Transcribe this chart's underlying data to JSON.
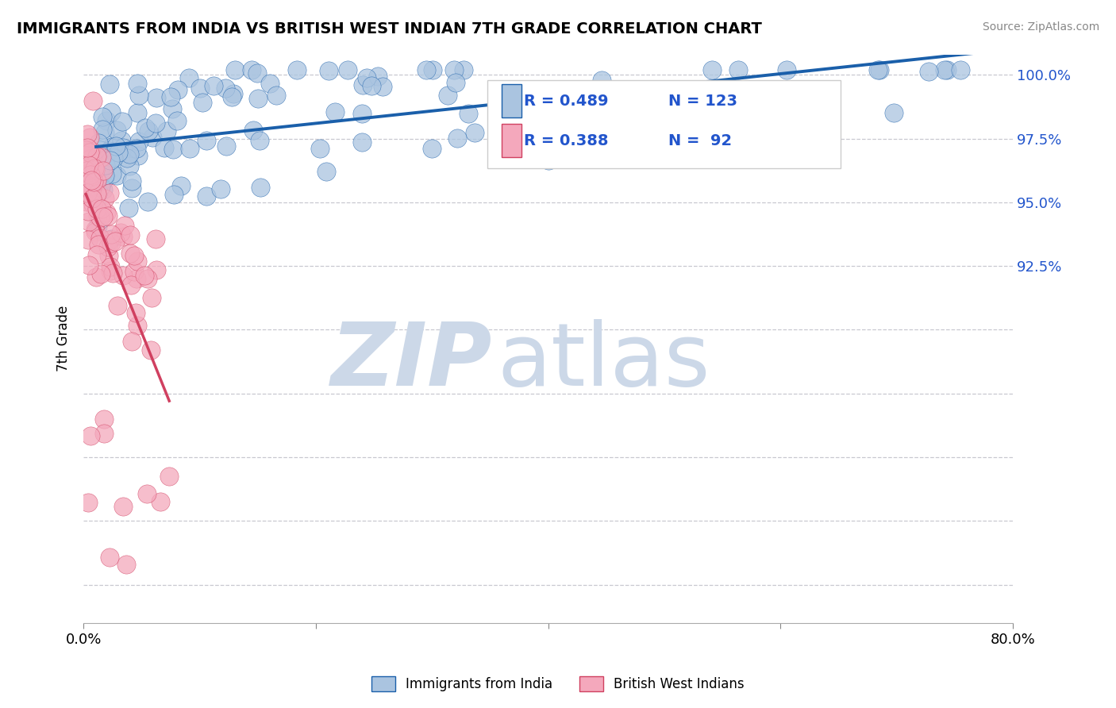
{
  "title": "IMMIGRANTS FROM INDIA VS BRITISH WEST INDIAN 7TH GRADE CORRELATION CHART",
  "source": "Source: ZipAtlas.com",
  "ylabel": "7th Grade",
  "xlim": [
    0.0,
    0.8
  ],
  "ylim": [
    0.785,
    1.008
  ],
  "ytick_positions": [
    0.8,
    0.825,
    0.85,
    0.875,
    0.9,
    0.925,
    0.95,
    0.975,
    1.0
  ],
  "ytick_labels": [
    "",
    "",
    "",
    "",
    "",
    "92.5%",
    "95.0%",
    "97.5%",
    "100.0%"
  ],
  "xtick_positions": [
    0.0,
    0.2,
    0.4,
    0.6,
    0.8
  ],
  "xtick_labels": [
    "0.0%",
    "",
    "",
    "",
    "80.0%"
  ],
  "legend_blue_label": "Immigrants from India",
  "legend_pink_label": "British West Indians",
  "R_blue": 0.489,
  "N_blue": 123,
  "R_pink": 0.388,
  "N_pink": 92,
  "blue_color": "#aac4e0",
  "pink_color": "#f4a8bc",
  "trendline_blue_color": "#1a5faa",
  "trendline_pink_color": "#d04060",
  "watermark_color": "#ccd8e8"
}
